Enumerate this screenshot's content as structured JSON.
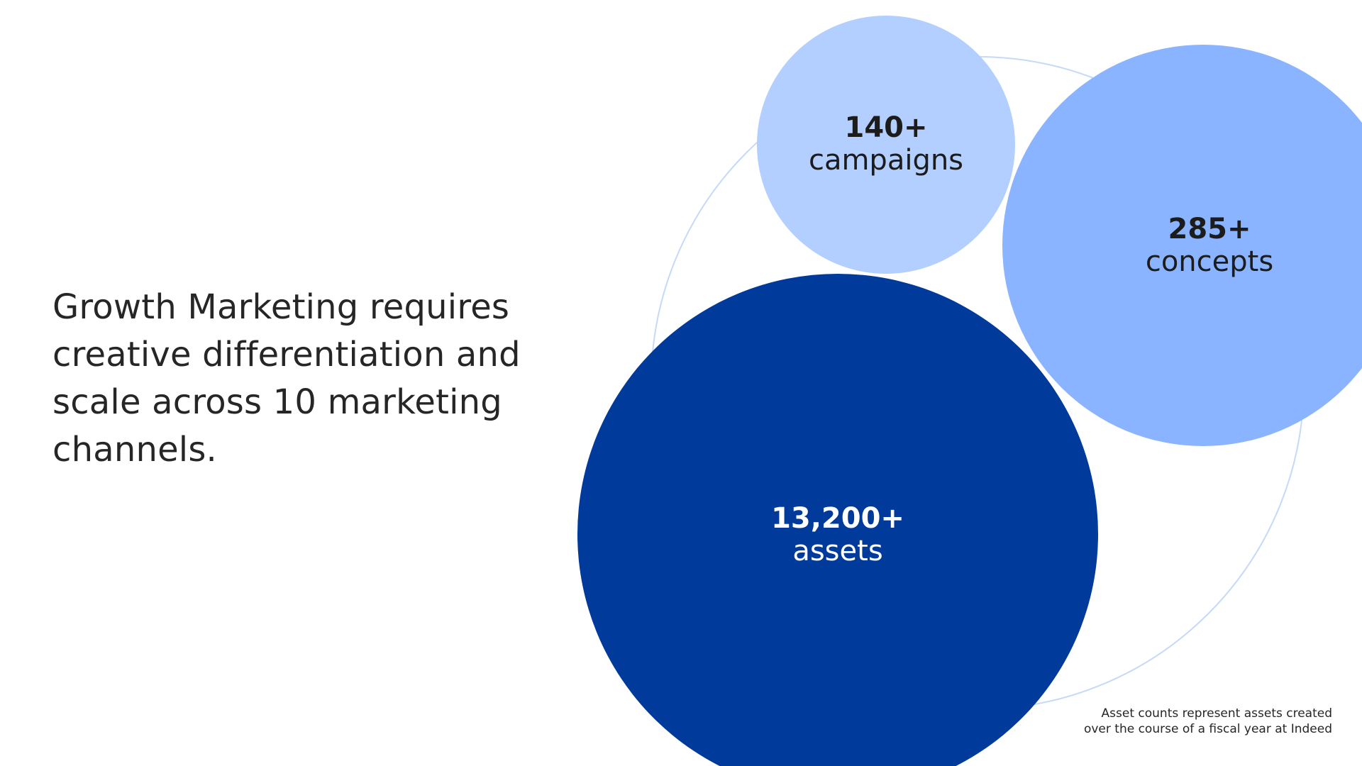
{
  "headline": {
    "lines": [
      "Growth Marketing requires",
      "creative differentiation and",
      "scale across 10 marketing",
      "channels."
    ]
  },
  "bubbles": {
    "campaigns": {
      "value": "140+",
      "unit": "campaigns",
      "color": "#b3cfff"
    },
    "concepts": {
      "value": "285+",
      "unit": "concepts",
      "color": "#8ab4ff"
    },
    "assets": {
      "value": "13,200+",
      "unit": "assets",
      "color": "#003a9b"
    }
  },
  "outline_color": "#c6d9f7",
  "footnote": {
    "line1": "Asset counts represent assets created",
    "line2": "over the course of a fiscal year at Indeed"
  }
}
